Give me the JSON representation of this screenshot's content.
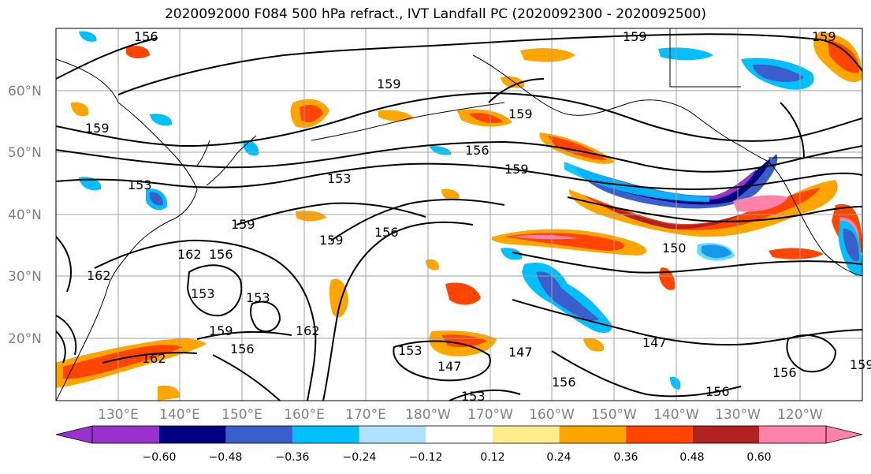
{
  "title": "2020092000 F084 500 hPa refract., IVT Landfall PC (2020092300 - 2020092500)",
  "lat_labels": [
    "60°N",
    "50°N",
    "40°N",
    "30°N",
    "20°N"
  ],
  "lon_labels": [
    "130°E",
    "140°E",
    "150°E",
    "160°E",
    "170°E",
    "180°W",
    "170°W",
    "160°W",
    "150°W",
    "140°W",
    "130°W",
    "120°W"
  ],
  "contour_labels": [
    "156",
    "159",
    "159",
    "159",
    "156",
    "159",
    "153",
    "153",
    "159",
    "159",
    "156",
    "162",
    "156",
    "162",
    "153",
    "153",
    "159",
    "156",
    "162",
    "162",
    "153",
    "147",
    "147",
    "153",
    "156",
    "147",
    "156",
    "156",
    "159",
    "150",
    "159",
    "159"
  ],
  "colorbar": {
    "ticks": [
      "−0.60",
      "−0.48",
      "−0.36",
      "−0.24",
      "−0.12",
      "0.12",
      "0.24",
      "0.36",
      "0.48",
      "0.60"
    ],
    "colors": [
      "#9932cc",
      "#000080",
      "#3a5fcd",
      "#00bfff",
      "#b0e2ff",
      "#ffffff",
      "#ffec8b",
      "#ffa500",
      "#ff4500",
      "#b22222",
      "#ff82ab"
    ]
  }
}
